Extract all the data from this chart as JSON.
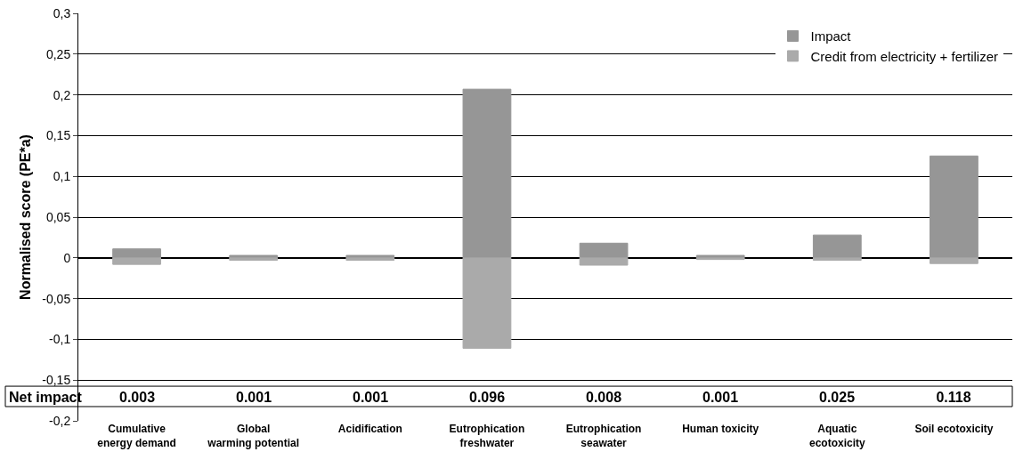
{
  "chart_data": {
    "type": "bar",
    "stacked": true,
    "ylabel": "Normalised score (PE*a)",
    "categories": [
      "Cumulative energy demand",
      "Global warming potential",
      "Acidification",
      "Eutrophication freshwater",
      "Eutrophication seawater",
      "Human toxicity",
      "Aquatic ecotoxicity",
      "Soil ecotoxicity"
    ],
    "series": [
      {
        "name": "Impact",
        "color": "#969696",
        "values": [
          0.011,
          0.003,
          0.003,
          0.207,
          0.018,
          0.003,
          0.028,
          0.125
        ]
      },
      {
        "name": "Credit from electricity + fertilizer",
        "color": "#aaaaaa",
        "values": [
          -0.008,
          -0.003,
          -0.003,
          -0.111,
          -0.009,
          -0.002,
          -0.003,
          -0.007
        ]
      }
    ],
    "annotations": [
      "Net impact",
      "0.003",
      "0.001",
      "0.001",
      "0.096",
      "0.008",
      "0.001",
      "0.025",
      "0.118"
    ],
    "ylim": [
      -0.2,
      0.3
    ],
    "yticks": [
      {
        "value": -0.2,
        "label": "-0,2"
      },
      {
        "value": -0.15,
        "label": "-0,15"
      },
      {
        "value": -0.1,
        "label": "-0,1"
      },
      {
        "value": -0.05,
        "label": "-0,05"
      },
      0,
      {
        "value": 0.05,
        "label": "0,05"
      },
      {
        "value": 0.1,
        "label": "0,1"
      },
      {
        "value": 0.15,
        "label": "0,15"
      },
      {
        "value": 0.2,
        "label": "0,2"
      },
      {
        "value": 0.25,
        "label": "0,25"
      },
      {
        "value": 0.3,
        "label": "0,3"
      }
    ],
    "grid": "y",
    "legend": "top right"
  }
}
